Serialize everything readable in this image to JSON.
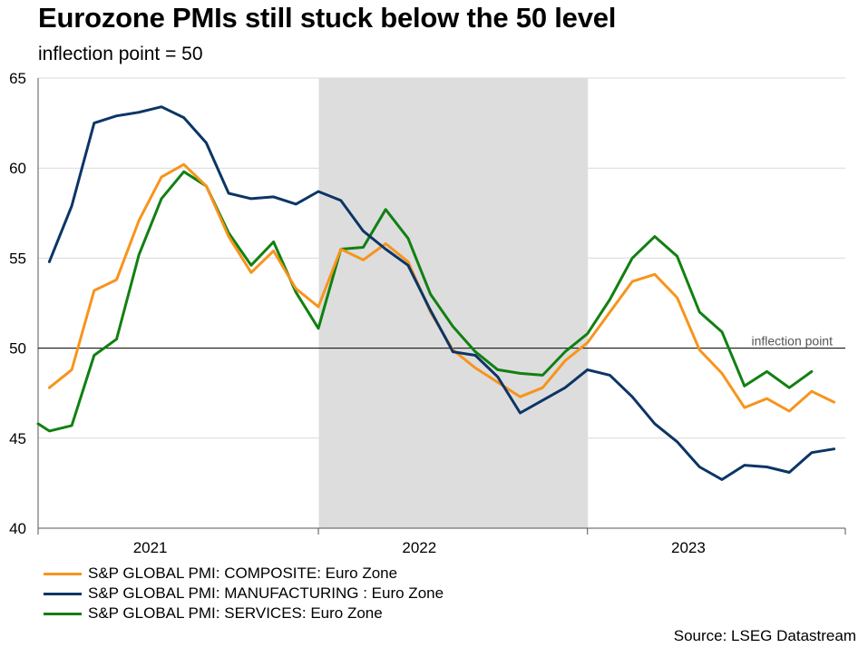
{
  "chart_data": {
    "type": "line",
    "title": "Eurozone PMIs still stuck below the 50 level",
    "subtitle": "inflection point = 50",
    "xlabel": "",
    "ylabel": "",
    "ylim": [
      40,
      65
    ],
    "yticks": [
      40,
      45,
      50,
      55,
      60,
      65
    ],
    "x_start": "2020-09",
    "year_labels": [
      {
        "label": "2021",
        "month_index": 4
      },
      {
        "label": "2022",
        "month_index": 16
      },
      {
        "label": "2023",
        "month_index": 28
      }
    ],
    "year_boundaries": [
      0,
      12,
      24,
      36
    ],
    "shaded_region": [
      12,
      24
    ],
    "reference_line": {
      "value": 50,
      "label": "inflection point"
    },
    "grid": true,
    "legend_position": "bottom-left",
    "series": [
      {
        "name": "S&P GLOBAL PMI: COMPOSITE: Euro Zone",
        "color": "#f7941d",
        "start_index": 0,
        "values": [
          47.8,
          48.8,
          53.2,
          53.8,
          57.1,
          59.5,
          60.2,
          59.0,
          56.2,
          54.2,
          55.4,
          53.3,
          52.3,
          55.5,
          54.9,
          55.8,
          54.8,
          52.0,
          49.9,
          48.9,
          48.1,
          47.3,
          47.8,
          49.3,
          50.3,
          52.0,
          53.7,
          54.1,
          52.8,
          49.9,
          48.6,
          46.7,
          47.2,
          46.5,
          47.6,
          47.0
        ]
      },
      {
        "name": "S&P GLOBAL PMI: MANUFACTURING : Euro Zone",
        "color": "#0b3566",
        "start_index": 0,
        "values": [
          54.8,
          57.9,
          62.5,
          62.9,
          63.1,
          63.4,
          62.8,
          61.4,
          58.6,
          58.3,
          58.4,
          58.0,
          58.7,
          58.2,
          56.5,
          55.5,
          54.6,
          52.1,
          49.8,
          49.6,
          48.4,
          46.4,
          47.1,
          47.8,
          48.8,
          48.5,
          47.3,
          45.8,
          44.8,
          43.4,
          42.7,
          43.5,
          43.4,
          43.1,
          44.2,
          44.4
        ]
      },
      {
        "name": "S&P GLOBAL PMI: SERVICES: Euro Zone",
        "color": "#118011",
        "start_index": -1,
        "values": [
          45.8,
          45.4,
          45.7,
          49.6,
          50.5,
          55.2,
          58.3,
          59.8,
          59.0,
          56.4,
          54.6,
          55.9,
          53.1,
          51.1,
          55.5,
          55.6,
          57.7,
          56.1,
          53.0,
          51.2,
          49.8,
          48.8,
          48.6,
          48.5,
          49.8,
          50.8,
          52.7,
          55.0,
          56.2,
          55.1,
          52.0,
          50.9,
          47.9,
          48.7,
          47.8,
          48.7
        ]
      }
    ]
  },
  "source": "Source: LSEG Datastream"
}
